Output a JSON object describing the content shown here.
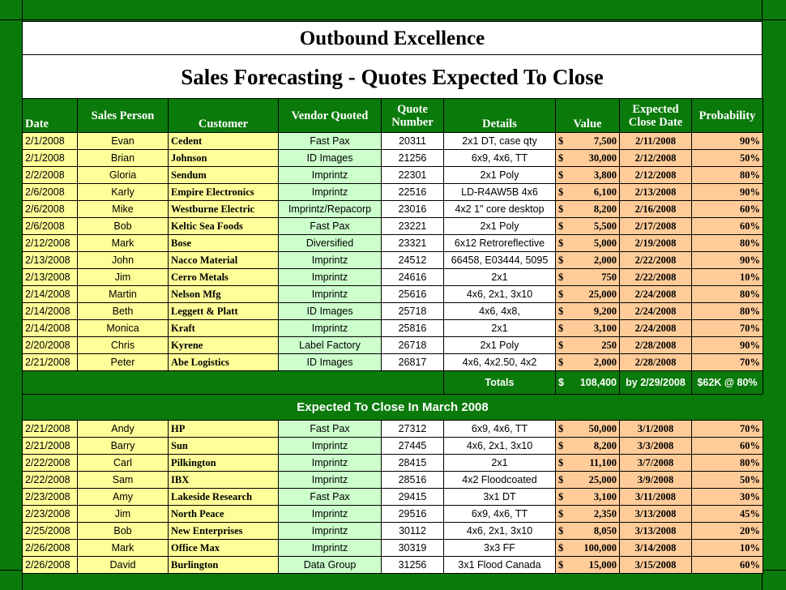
{
  "title": "Outbound Excellence",
  "subtitle": "Sales Forecasting - Quotes Expected To Close",
  "headers": {
    "date": "Date",
    "sales_person": "Sales Person",
    "customer": "Customer",
    "vendor": "Vendor Quoted",
    "quote_number": "Quote Number",
    "details": "Details",
    "value": "Value",
    "close_date": "Expected Close Date",
    "probability": "Probability"
  },
  "currency": "$",
  "february_rows": [
    {
      "date": "2/1/2008",
      "person": "Evan",
      "customer": "Cedent",
      "vendor": "Fast Pax",
      "quote": "20311",
      "details": "2x1 DT, case qty",
      "value": "7,500",
      "close": "2/11/2008",
      "prob": "90%"
    },
    {
      "date": "2/1/2008",
      "person": "Brian",
      "customer": "Johnson",
      "vendor": "ID Images",
      "quote": "21256",
      "details": "6x9, 4x6, TT",
      "value": "30,000",
      "close": "2/12/2008",
      "prob": "50%"
    },
    {
      "date": "2/2/2008",
      "person": "Gloria",
      "customer": "Sendum",
      "vendor": "Imprintz",
      "quote": "22301",
      "details": "2x1 Poly",
      "value": "3,800",
      "close": "2/12/2008",
      "prob": "80%"
    },
    {
      "date": "2/6/2008",
      "person": "Karly",
      "customer": "Empire Electronics",
      "vendor": "Imprintz",
      "quote": "22516",
      "details": "LD-R4AW5B 4x6",
      "value": "6,100",
      "close": "2/13/2008",
      "prob": "90%"
    },
    {
      "date": "2/6/2008",
      "person": "Mike",
      "customer": "Westburne Electric",
      "vendor": "Imprintz/Repacorp",
      "quote": "23016",
      "details": "4x2 1\" core desktop",
      "value": "8,200",
      "close": "2/16/2008",
      "prob": "60%"
    },
    {
      "date": "2/6/2008",
      "person": "Bob",
      "customer": "Keltic Sea Foods",
      "vendor": "Fast Pax",
      "quote": "23221",
      "details": "2x1 Poly",
      "value": "5,500",
      "close": "2/17/2008",
      "prob": "60%"
    },
    {
      "date": "2/12/2008",
      "person": "Mark",
      "customer": "Bose",
      "vendor": "Diversified",
      "quote": "23321",
      "details": "6x12 Retroreflective",
      "value": "5,000",
      "close": "2/19/2008",
      "prob": "80%"
    },
    {
      "date": "2/13/2008",
      "person": "John",
      "customer": "Nacco Material",
      "vendor": "Imprintz",
      "quote": "24512",
      "details": "66458, E03444, 5095",
      "value": "2,000",
      "close": "2/22/2008",
      "prob": "90%"
    },
    {
      "date": "2/13/2008",
      "person": "Jim",
      "customer": "Cerro Metals",
      "vendor": "Imprintz",
      "quote": "24616",
      "details": "2x1",
      "value": "750",
      "close": "2/22/2008",
      "prob": "10%"
    },
    {
      "date": "2/14/2008",
      "person": "Martin",
      "customer": "Nelson Mfg",
      "vendor": "Imprintz",
      "quote": "25616",
      "details": "4x6, 2x1, 3x10",
      "value": "25,000",
      "close": "2/24/2008",
      "prob": "80%"
    },
    {
      "date": "2/14/2008",
      "person": "Beth",
      "customer": "Leggett & Platt",
      "vendor": "ID Images",
      "quote": "25718",
      "details": "4x6, 4x8,",
      "value": "9,200",
      "close": "2/24/2008",
      "prob": "80%"
    },
    {
      "date": "2/14/2008",
      "person": "Monica",
      "customer": "Kraft",
      "vendor": "Imprintz",
      "quote": "25816",
      "details": "2x1",
      "value": "3,100",
      "close": "2/24/2008",
      "prob": "70%"
    },
    {
      "date": "2/20/2008",
      "person": "Chris",
      "customer": "Kyrene",
      "vendor": "Label Factory",
      "quote": "26718",
      "details": "2x1 Poly",
      "value": "250",
      "close": "2/28/2008",
      "prob": "90%"
    },
    {
      "date": "2/21/2008",
      "person": "Peter",
      "customer": "Abe Logistics",
      "vendor": "ID Images",
      "quote": "26817",
      "details": "4x6, 4x2.50, 4x2",
      "value": "2,000",
      "close": "2/28/2008",
      "prob": "70%"
    }
  ],
  "totals": {
    "label": "Totals",
    "value": "108,400",
    "by_date": "by 2/29/2008",
    "summary": "$62K @ 80%"
  },
  "march_section_title": "Expected To Close In March 2008",
  "march_rows": [
    {
      "date": "2/21/2008",
      "person": "Andy",
      "customer": "HP",
      "vendor": "Fast Pax",
      "quote": "27312",
      "details": "6x9, 4x6, TT",
      "value": "50,000",
      "close": "3/1/2008",
      "prob": "70%"
    },
    {
      "date": "2/21/2008",
      "person": "Barry",
      "customer": "Sun",
      "vendor": "Imprintz",
      "quote": "27445",
      "details": "4x6, 2x1, 3x10",
      "value": "8,200",
      "close": "3/3/2008",
      "prob": "60%"
    },
    {
      "date": "2/22/2008",
      "person": "Carl",
      "customer": "Pilkington",
      "vendor": "Imprintz",
      "quote": "28415",
      "details": "2x1",
      "value": "11,100",
      "close": "3/7/2008",
      "prob": "80%"
    },
    {
      "date": "2/22/2008",
      "person": "Sam",
      "customer": "IBX",
      "vendor": "Imprintz",
      "quote": "28516",
      "details": "4x2 Floodcoated",
      "value": "25,000",
      "close": "3/9/2008",
      "prob": "50%"
    },
    {
      "date": "2/23/2008",
      "person": "Amy",
      "customer": "Lakeside Research",
      "vendor": "Fast Pax",
      "quote": "29415",
      "details": "3x1 DT",
      "value": "3,100",
      "close": "3/11/2008",
      "prob": "30%"
    },
    {
      "date": "2/23/2008",
      "person": "Jim",
      "customer": "North Peace",
      "vendor": "Imprintz",
      "quote": "29516",
      "details": "6x9, 4x6, TT",
      "value": "2,350",
      "close": "3/13/2008",
      "prob": "45%"
    },
    {
      "date": "2/25/2008",
      "person": "Bob",
      "customer": "New Enterprises",
      "vendor": "Imprintz",
      "quote": "30112",
      "details": "4x6, 2x1, 3x10",
      "value": "8,050",
      "close": "3/13/2008",
      "prob": "20%"
    },
    {
      "date": "2/26/2008",
      "person": "Mark",
      "customer": "Office Max",
      "vendor": "Imprintz",
      "quote": "30319",
      "details": "3x3 FF",
      "value": "100,000",
      "close": "3/14/2008",
      "prob": "10%"
    },
    {
      "date": "2/26/2008",
      "person": "David",
      "customer": "Burlington",
      "vendor": "Data Group",
      "quote": "31256",
      "details": "3x1 Flood Canada",
      "value": "15,000",
      "close": "3/15/2008",
      "prob": "60%"
    }
  ]
}
